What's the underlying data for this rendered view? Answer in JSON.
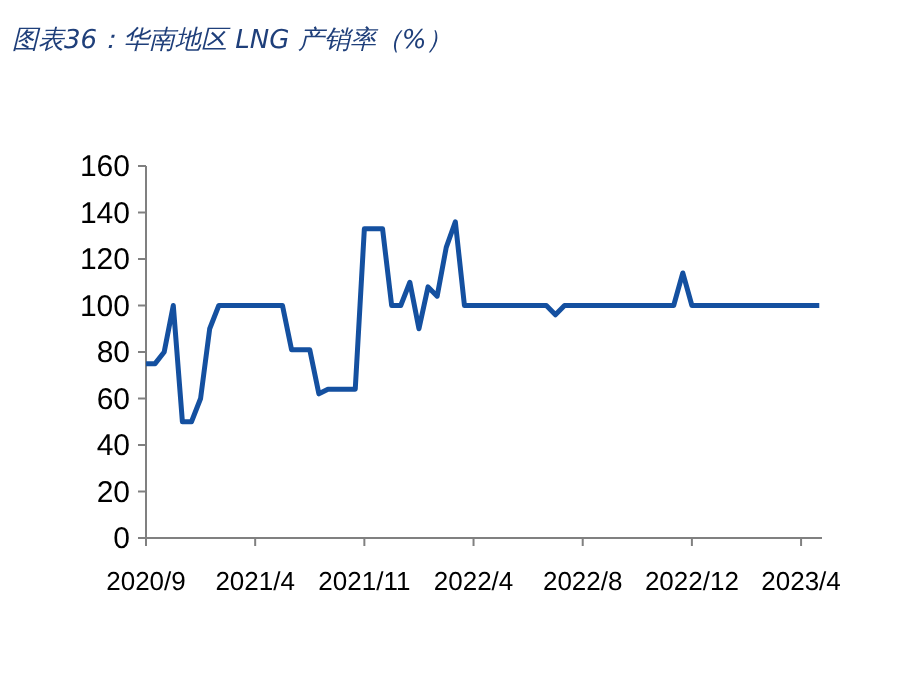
{
  "chart_data": {
    "type": "line",
    "title": "图表36：华南地区 LNG 产销率（%）",
    "categories": [
      "2020/9",
      null,
      null,
      null,
      null,
      null,
      null,
      null,
      null,
      null,
      null,
      null,
      "2021/4",
      null,
      null,
      null,
      null,
      null,
      null,
      null,
      null,
      null,
      null,
      null,
      "2021/11",
      null,
      null,
      null,
      null,
      null,
      null,
      null,
      null,
      null,
      null,
      null,
      "2022/4",
      null,
      null,
      null,
      null,
      null,
      null,
      null,
      null,
      null,
      null,
      null,
      "2022/8",
      null,
      null,
      null,
      null,
      null,
      null,
      null,
      null,
      null,
      null,
      null,
      "2022/12",
      null,
      null,
      null,
      null,
      null,
      null,
      null,
      null,
      null,
      null,
      null,
      "2023/4",
      null,
      null
    ],
    "values": [
      75,
      75,
      80,
      100,
      50,
      50,
      60,
      90,
      100,
      100,
      100,
      100,
      100,
      100,
      100,
      100,
      81,
      81,
      81,
      62,
      64,
      64,
      64,
      64,
      133,
      133,
      133,
      100,
      100,
      110,
      90,
      108,
      104,
      125,
      136,
      100,
      100,
      100,
      100,
      100,
      100,
      100,
      100,
      100,
      100,
      96,
      100,
      100,
      100,
      100,
      100,
      100,
      100,
      100,
      100,
      100,
      100,
      100,
      100,
      114,
      100,
      100,
      100,
      100,
      100,
      100,
      100,
      100,
      100,
      100,
      100,
      100,
      100,
      100,
      100
    ],
    "color": "#1450a0",
    "ylim": [
      0,
      160
    ],
    "yticks": [
      0,
      20,
      40,
      60,
      80,
      100,
      120,
      140,
      160
    ],
    "grid": false
  }
}
